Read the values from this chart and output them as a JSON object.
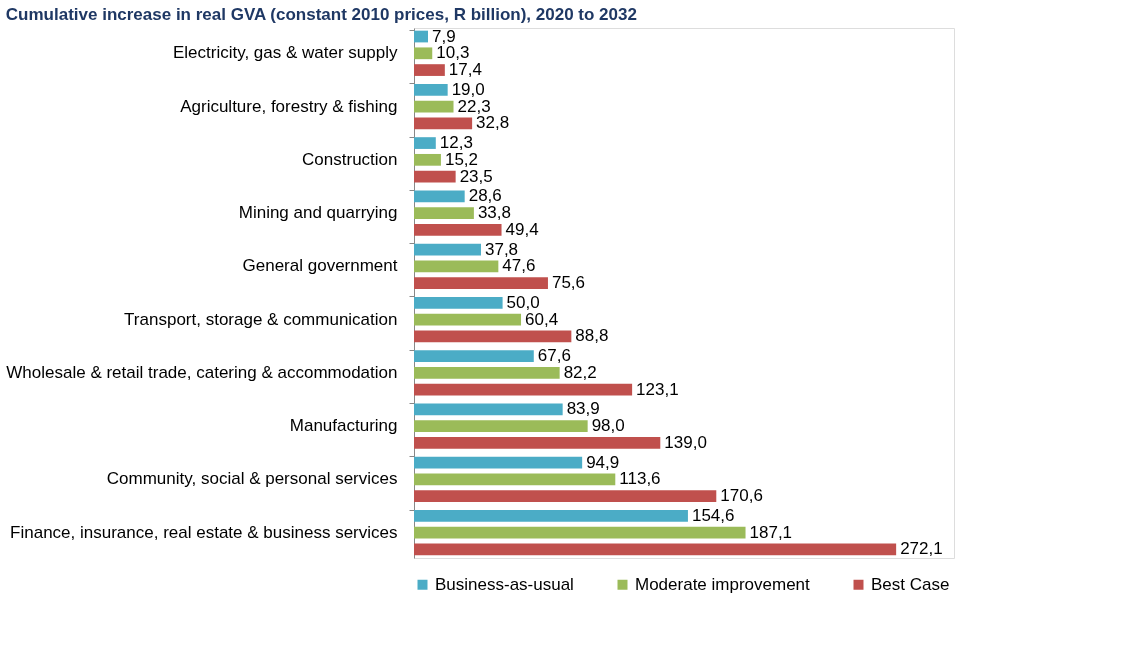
{
  "chart_data": {
    "type": "bar",
    "orientation": "horizontal",
    "title": "Cumulative increase in real GVA (constant 2010 prices, R billion), 2020 to 2032",
    "categories": [
      "Electricity, gas & water supply",
      "Agriculture, forestry & fishing",
      "Construction",
      "Mining and quarrying",
      "General government",
      "Transport, storage & communication",
      "Wholesale & retail trade, catering & accommodation",
      "Manufacturing",
      "Community, social & personal services",
      "Finance, insurance, real estate & business services"
    ],
    "series": [
      {
        "name": "Business-as-usual",
        "color": "#4bacc6",
        "values": [
          7.9,
          19.0,
          12.3,
          28.6,
          37.8,
          50.0,
          67.6,
          83.9,
          94.9,
          154.6
        ],
        "value_labels": [
          "7,9",
          "19,0",
          "12,3",
          "28,6",
          "37,8",
          "50,0",
          "67,6",
          "83,9",
          "94,9",
          "154,6"
        ]
      },
      {
        "name": "Moderate improvement",
        "color": "#9bbb59",
        "values": [
          10.3,
          22.3,
          15.2,
          33.8,
          47.6,
          60.4,
          82.2,
          98.0,
          113.6,
          187.1
        ],
        "value_labels": [
          "10,3",
          "22,3",
          "15,2",
          "33,8",
          "47,6",
          "60,4",
          "82,2",
          "98,0",
          "113,6",
          "187,1"
        ]
      },
      {
        "name": "Best Case",
        "color": "#c0504d",
        "values": [
          17.4,
          32.8,
          23.5,
          49.4,
          75.6,
          88.8,
          123.1,
          139.0,
          170.6,
          272.1
        ],
        "value_labels": [
          "17,4",
          "32,8",
          "23,5",
          "49,4",
          "75,6",
          "88,8",
          "123,1",
          "139,0",
          "170,6",
          "272,1"
        ]
      }
    ],
    "legend": "bottom"
  }
}
